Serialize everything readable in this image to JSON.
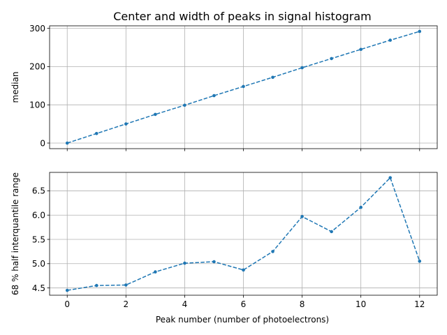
{
  "figure": {
    "title": "Center and width of peaks in signal histogram",
    "xlabel": "Peak number (number of photoelectrons)"
  },
  "chart_data": [
    {
      "type": "line",
      "title": "Center and width of peaks in signal histogram",
      "xlabel": "",
      "ylabel": "median",
      "x": [
        0,
        1,
        2,
        3,
        4,
        5,
        6,
        7,
        8,
        9,
        10,
        11,
        12
      ],
      "series": [
        {
          "values": [
            0,
            25,
            50,
            75,
            99,
            124,
            148,
            172,
            197,
            221,
            245,
            269,
            292
          ]
        }
      ],
      "xlim": [
        -0.6,
        12.6
      ],
      "ylim": [
        -14.6,
        306.6
      ],
      "xticks": [
        0,
        2,
        4,
        6,
        8,
        10,
        12
      ],
      "xtick_labels_shown": false,
      "yticks": [
        0,
        100,
        200,
        300
      ],
      "ytick_labels": [
        "0",
        "100",
        "200",
        "300"
      ],
      "grid": true,
      "line_style": "dashed",
      "marker": "dot",
      "color": "#1f77b4"
    },
    {
      "type": "line",
      "xlabel": "Peak number (number of photoelectrons)",
      "ylabel": "68 % half interquantile range",
      "x": [
        0,
        1,
        2,
        3,
        4,
        5,
        6,
        7,
        8,
        9,
        10,
        11,
        12
      ],
      "series": [
        {
          "values": [
            4.45,
            4.55,
            4.56,
            4.83,
            5.01,
            5.04,
            4.87,
            5.25,
            5.97,
            5.66,
            6.16,
            6.77,
            5.05
          ]
        }
      ],
      "xlim": [
        -0.6,
        12.6
      ],
      "ylim": [
        4.35,
        6.88
      ],
      "xticks": [
        0,
        2,
        4,
        6,
        8,
        10,
        12
      ],
      "xtick_labels": [
        "0",
        "2",
        "4",
        "6",
        "8",
        "10",
        "12"
      ],
      "yticks": [
        4.5,
        5.0,
        5.5,
        6.0,
        6.5
      ],
      "ytick_labels": [
        "4.5",
        "5.0",
        "5.5",
        "6.0",
        "6.5"
      ],
      "grid": true,
      "line_style": "dashed",
      "marker": "dot",
      "color": "#1f77b4"
    }
  ]
}
